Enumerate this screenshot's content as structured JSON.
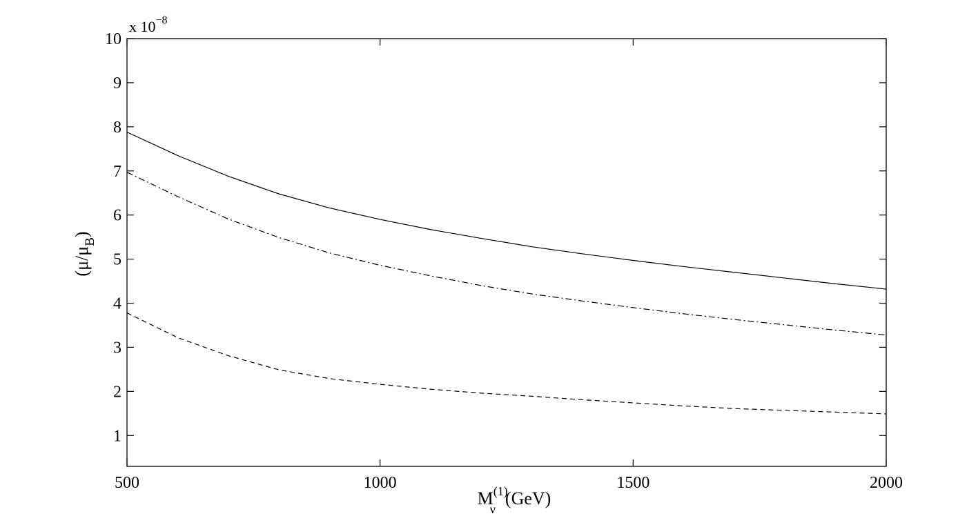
{
  "chart_data": {
    "type": "line",
    "x_axis": {
      "label_main": "M",
      "label_sub": "ν",
      "label_sup": "(1)",
      "label_unit": "(GeV)",
      "range": [
        500,
        2000
      ],
      "ticks": [
        "500",
        "1000",
        "1500",
        "2000"
      ]
    },
    "y_axis": {
      "label_open": "(μ/μ",
      "label_sub": "B",
      "label_close": ")",
      "range": [
        0.3,
        10
      ],
      "ticks": [
        "1",
        "2",
        "3",
        "4",
        "5",
        "6",
        "7",
        "8",
        "9",
        "10"
      ],
      "multiplier_base": "x 10",
      "multiplier_exp": "−8"
    },
    "grid": false,
    "legend": "none",
    "x": [
      500,
      600,
      700,
      800,
      900,
      1000,
      1100,
      1200,
      1300,
      1400,
      1500,
      1600,
      1700,
      1800,
      1900,
      2000
    ],
    "series": [
      {
        "style": "solid",
        "values": [
          7.88,
          7.35,
          6.88,
          6.48,
          6.16,
          5.9,
          5.67,
          5.47,
          5.28,
          5.12,
          4.97,
          4.83,
          4.7,
          4.57,
          4.44,
          4.32
        ]
      },
      {
        "style": "dash-dot",
        "values": [
          6.97,
          6.42,
          5.91,
          5.49,
          5.14,
          4.86,
          4.62,
          4.4,
          4.21,
          4.05,
          3.9,
          3.76,
          3.63,
          3.51,
          3.39,
          3.28
        ]
      },
      {
        "style": "dashed",
        "values": [
          3.78,
          3.22,
          2.81,
          2.49,
          2.29,
          2.16,
          2.05,
          1.96,
          1.89,
          1.81,
          1.74,
          1.67,
          1.61,
          1.57,
          1.53,
          1.49
        ]
      }
    ]
  }
}
